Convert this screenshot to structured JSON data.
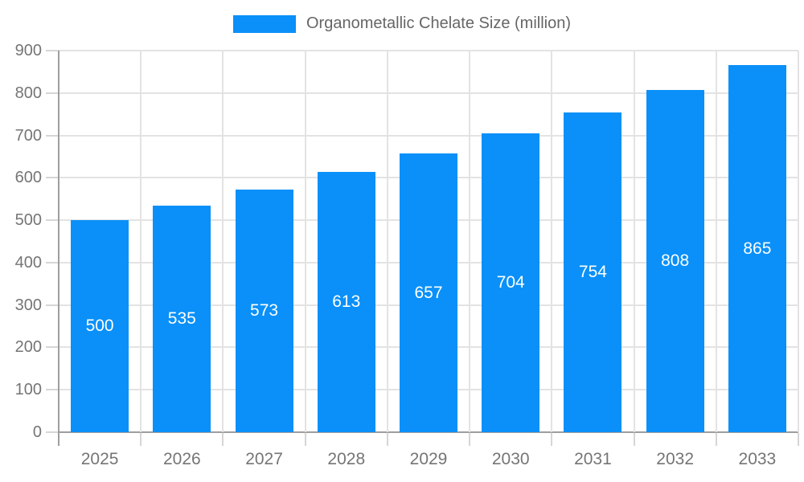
{
  "chart_data": {
    "type": "bar",
    "title": "",
    "legend": {
      "label": "Organometallic Chelate Size (million)",
      "position": "top-center"
    },
    "categories": [
      "2025",
      "2026",
      "2027",
      "2028",
      "2029",
      "2030",
      "2031",
      "2032",
      "2033"
    ],
    "series": [
      {
        "name": "Organometallic Chelate Size (million)",
        "values": [
          500,
          535,
          573,
          613,
          657,
          704,
          754,
          808,
          865
        ]
      }
    ],
    "value_labels": [
      "500",
      "535",
      "573",
      "613",
      "657",
      "704",
      "754",
      "808",
      "865"
    ],
    "xlabel": "",
    "ylabel": "",
    "ylim": [
      0,
      900
    ],
    "ytick_step": 100,
    "ytick_labels": [
      "0",
      "100",
      "200",
      "300",
      "400",
      "500",
      "600",
      "700",
      "800",
      "900"
    ],
    "grid": true,
    "colors": {
      "bar": "#0a90f8",
      "grid": "#e3e3e3",
      "axis": "#9e9e9e",
      "tick": "#d6d6d6",
      "tick_label": "#757575",
      "legend_text": "#666666",
      "value_label": "#ffffff",
      "background": "#ffffff"
    }
  }
}
